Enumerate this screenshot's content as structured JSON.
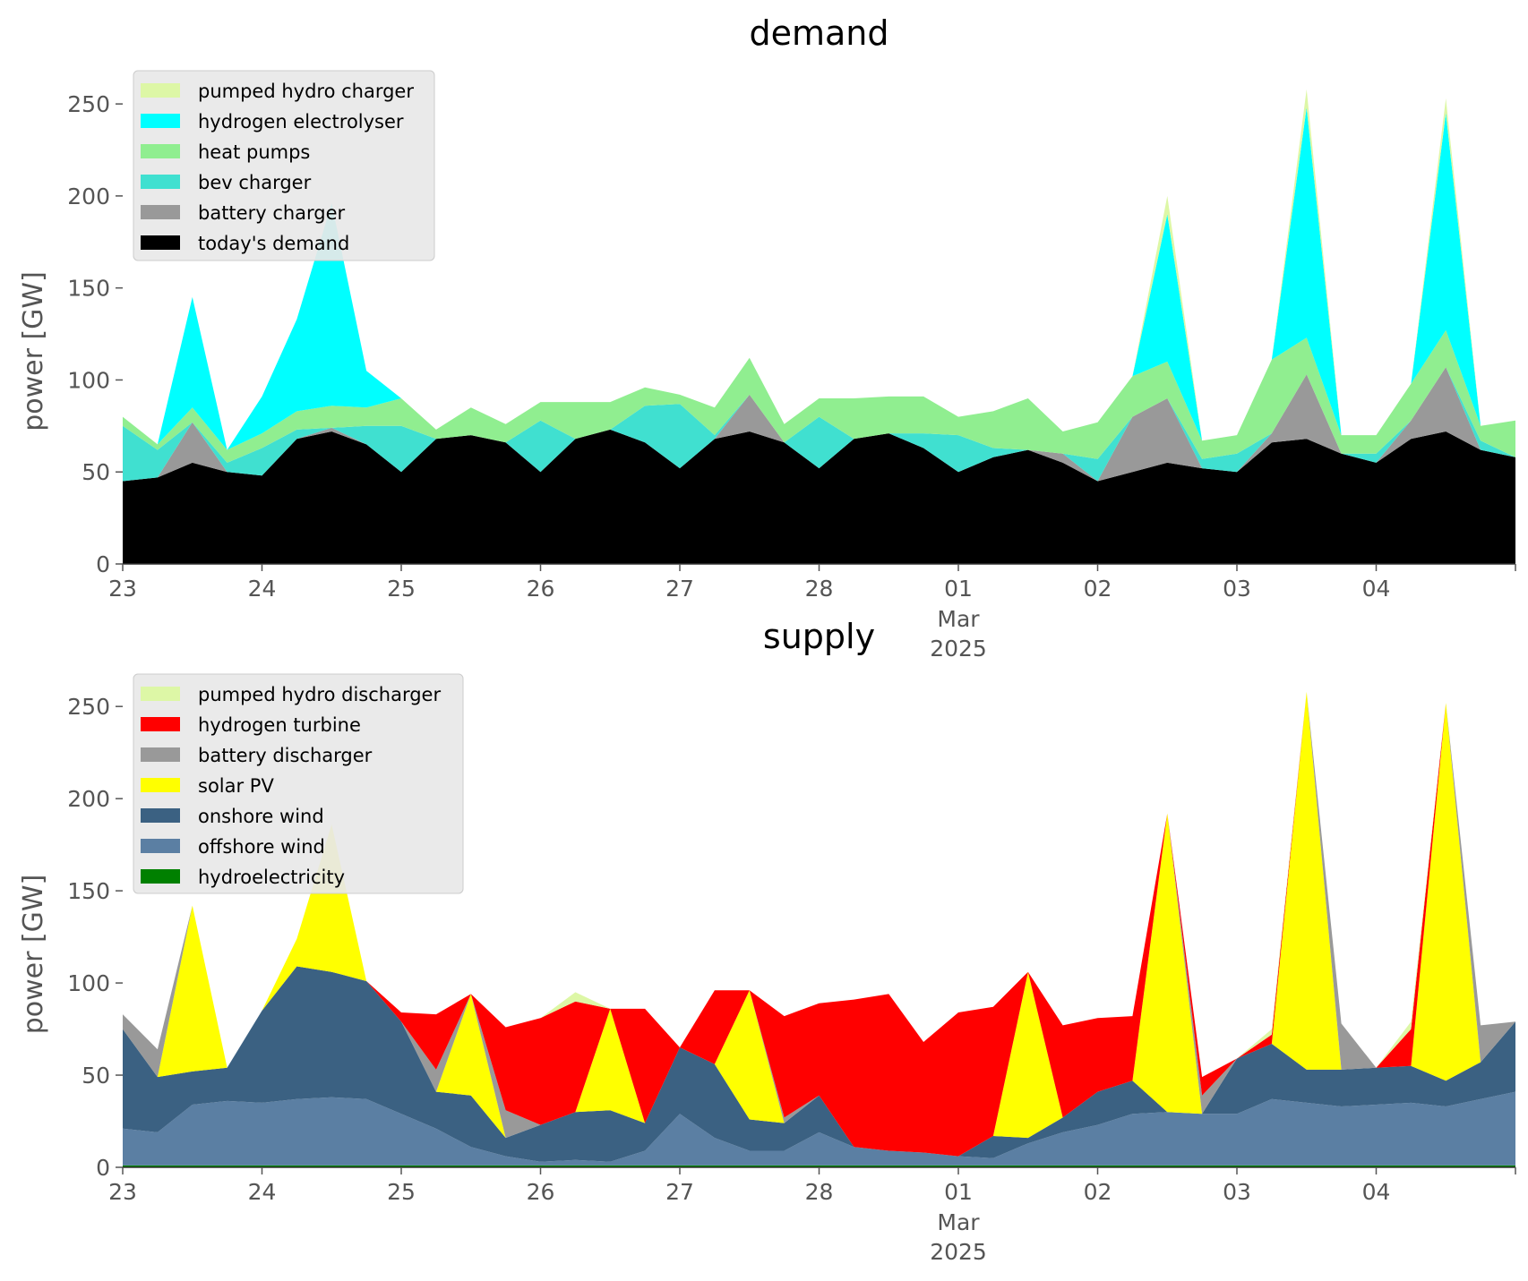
{
  "chart_data": [
    {
      "type": "area",
      "stacked": true,
      "title": "demand",
      "ylabel": "power [GW]",
      "xlabel": "",
      "ylim": [
        0,
        270
      ],
      "xlim": [
        0,
        10
      ],
      "yticks": [
        0,
        50,
        100,
        150,
        200,
        250
      ],
      "xticks": [
        {
          "x": 0,
          "label": "23"
        },
        {
          "x": 1,
          "label": "24"
        },
        {
          "x": 2,
          "label": "25"
        },
        {
          "x": 3,
          "label": "26"
        },
        {
          "x": 4,
          "label": "27"
        },
        {
          "x": 5,
          "label": "28"
        },
        {
          "x": 6,
          "label": "01",
          "sublabel": [
            "Mar",
            "2025"
          ]
        },
        {
          "x": 7,
          "label": "02"
        },
        {
          "x": 8,
          "label": "03"
        },
        {
          "x": 9,
          "label": "04"
        }
      ],
      "x_unit": "days from 23 Feb 2025",
      "legend_position": "upper-left",
      "grid": false,
      "x": [
        0,
        0.25,
        0.5,
        0.75,
        1,
        1.25,
        1.5,
        1.75,
        2,
        2.25,
        2.5,
        2.75,
        3,
        3.25,
        3.5,
        3.75,
        4,
        4.25,
        4.5,
        4.75,
        5,
        5.25,
        5.5,
        5.75,
        6,
        6.25,
        6.5,
        6.75,
        7,
        7.25,
        7.5,
        7.75,
        8,
        8.25,
        8.5,
        8.75,
        9,
        9.25,
        9.5,
        9.75,
        10
      ],
      "series": [
        {
          "name": "today's demand",
          "color": "#000000",
          "values": [
            45,
            47,
            55,
            50,
            48,
            68,
            72,
            65,
            50,
            68,
            70,
            66,
            50,
            68,
            73,
            66,
            52,
            68,
            72,
            66,
            52,
            68,
            71,
            63,
            50,
            58,
            62,
            55,
            45,
            50,
            55,
            52,
            50,
            66,
            68,
            60,
            55,
            68,
            72,
            62,
            58
          ]
        },
        {
          "name": "battery charger",
          "color": "#999999",
          "values": [
            0,
            0,
            22,
            0,
            0,
            0,
            2,
            0,
            0,
            0,
            0,
            0,
            0,
            0,
            0,
            0,
            0,
            0,
            20,
            0,
            0,
            0,
            0,
            0,
            0,
            0,
            0,
            5,
            0,
            30,
            35,
            0,
            0,
            5,
            35,
            0,
            0,
            10,
            35,
            0,
            0
          ]
        },
        {
          "name": "bev charger",
          "color": "#40E0D0",
          "values": [
            30,
            15,
            0,
            5,
            15,
            5,
            0,
            10,
            25,
            0,
            0,
            0,
            28,
            0,
            0,
            20,
            35,
            2,
            0,
            0,
            28,
            0,
            0,
            8,
            20,
            5,
            0,
            0,
            12,
            0,
            0,
            5,
            10,
            0,
            0,
            0,
            5,
            0,
            0,
            5,
            0
          ]
        },
        {
          "name": "heat pumps",
          "color": "#90EE90",
          "values": [
            5,
            3,
            8,
            7,
            8,
            10,
            12,
            10,
            15,
            5,
            15,
            10,
            10,
            20,
            15,
            10,
            5,
            15,
            20,
            10,
            10,
            22,
            20,
            20,
            10,
            20,
            28,
            12,
            20,
            22,
            20,
            10,
            10,
            40,
            20,
            10,
            10,
            20,
            20,
            8,
            20
          ]
        },
        {
          "name": "hydrogen electrolyser",
          "color": "#00FFFF",
          "values": [
            0,
            0,
            60,
            0,
            20,
            50,
            110,
            20,
            0,
            0,
            0,
            0,
            0,
            0,
            0,
            0,
            0,
            0,
            0,
            0,
            0,
            0,
            0,
            0,
            0,
            0,
            0,
            0,
            0,
            0,
            80,
            0,
            0,
            0,
            125,
            0,
            0,
            0,
            118,
            0,
            0
          ]
        },
        {
          "name": "pumped hydro charger",
          "color": "#DDF7A6",
          "values": [
            0,
            0,
            0,
            0,
            0,
            0,
            0,
            0,
            0,
            0,
            0,
            0,
            0,
            0,
            0,
            0,
            0,
            0,
            0,
            0,
            0,
            0,
            0,
            0,
            0,
            0,
            0,
            0,
            0,
            0,
            10,
            0,
            0,
            0,
            10,
            0,
            0,
            0,
            8,
            0,
            0
          ]
        }
      ]
    },
    {
      "type": "area",
      "stacked": true,
      "title": "supply",
      "ylabel": "power [GW]",
      "xlabel": "",
      "ylim": [
        0,
        270
      ],
      "xlim": [
        0,
        10
      ],
      "yticks": [
        0,
        50,
        100,
        150,
        200,
        250
      ],
      "xticks": [
        {
          "x": 0,
          "label": "23"
        },
        {
          "x": 1,
          "label": "24"
        },
        {
          "x": 2,
          "label": "25"
        },
        {
          "x": 3,
          "label": "26"
        },
        {
          "x": 4,
          "label": "27"
        },
        {
          "x": 5,
          "label": "28"
        },
        {
          "x": 6,
          "label": "01",
          "sublabel": [
            "Mar",
            "2025"
          ]
        },
        {
          "x": 7,
          "label": "02"
        },
        {
          "x": 8,
          "label": "03"
        },
        {
          "x": 9,
          "label": "04"
        }
      ],
      "x_unit": "days from 23 Feb 2025",
      "legend_position": "upper-left",
      "grid": false,
      "x": [
        0,
        0.25,
        0.5,
        0.75,
        1,
        1.25,
        1.5,
        1.75,
        2,
        2.25,
        2.5,
        2.75,
        3,
        3.25,
        3.5,
        3.75,
        4,
        4.25,
        4.5,
        4.75,
        5,
        5.25,
        5.5,
        5.75,
        6,
        6.25,
        6.5,
        6.75,
        7,
        7.25,
        7.5,
        7.75,
        8,
        8.25,
        8.5,
        8.75,
        9,
        9.25,
        9.5,
        9.75,
        10
      ],
      "series": [
        {
          "name": "hydroelectricity",
          "color": "#008000",
          "values": [
            1,
            1,
            1,
            1,
            1,
            1,
            1,
            1,
            1,
            1,
            1,
            1,
            1,
            1,
            1,
            1,
            1,
            1,
            1,
            1,
            1,
            1,
            1,
            1,
            1,
            1,
            1,
            1,
            1,
            1,
            1,
            1,
            1,
            1,
            1,
            1,
            1,
            1,
            1,
            1,
            1
          ]
        },
        {
          "name": "offshore wind",
          "color": "#5B7FA3",
          "values": [
            20,
            18,
            33,
            35,
            34,
            36,
            37,
            36,
            28,
            20,
            10,
            5,
            2,
            3,
            2,
            8,
            28,
            15,
            8,
            8,
            18,
            10,
            8,
            7,
            5,
            4,
            12,
            18,
            22,
            28,
            29,
            28,
            28,
            36,
            34,
            32,
            33,
            34,
            32,
            36,
            40
          ]
        },
        {
          "name": "onshore wind",
          "color": "#3B6182",
          "values": [
            54,
            30,
            18,
            18,
            50,
            72,
            68,
            64,
            50,
            20,
            28,
            10,
            20,
            26,
            28,
            15,
            36,
            40,
            17,
            15,
            20,
            0,
            0,
            0,
            0,
            12,
            3,
            8,
            18,
            18,
            0,
            0,
            30,
            30,
            18,
            20,
            20,
            20,
            14,
            20,
            38
          ]
        },
        {
          "name": "solar PV",
          "color": "#FFFF00",
          "values": [
            0,
            0,
            90,
            0,
            0,
            15,
            80,
            0,
            0,
            0,
            55,
            0,
            0,
            0,
            55,
            0,
            0,
            0,
            70,
            0,
            0,
            0,
            0,
            0,
            0,
            0,
            90,
            0,
            0,
            0,
            162,
            0,
            0,
            0,
            205,
            0,
            0,
            0,
            205,
            0,
            0
          ]
        },
        {
          "name": "battery discharger",
          "color": "#999999",
          "values": [
            8,
            15,
            0,
            0,
            0,
            0,
            0,
            0,
            0,
            12,
            0,
            15,
            0,
            0,
            0,
            0,
            0,
            0,
            0,
            3,
            0,
            0,
            0,
            0,
            0,
            0,
            0,
            0,
            0,
            0,
            0,
            10,
            0,
            0,
            0,
            25,
            0,
            0,
            0,
            20,
            0
          ]
        },
        {
          "name": "hydrogen turbine",
          "color": "#FF0000",
          "values": [
            0,
            0,
            0,
            0,
            0,
            0,
            0,
            0,
            5,
            30,
            0,
            45,
            58,
            60,
            0,
            62,
            0,
            40,
            0,
            55,
            50,
            80,
            85,
            60,
            78,
            70,
            0,
            50,
            40,
            35,
            0,
            10,
            0,
            5,
            0,
            0,
            0,
            20,
            0,
            0,
            0
          ]
        },
        {
          "name": "pumped hydro discharger",
          "color": "#DDF7A6",
          "values": [
            0,
            0,
            0,
            0,
            0,
            0,
            0,
            0,
            0,
            0,
            0,
            0,
            0,
            5,
            0,
            0,
            0,
            0,
            0,
            0,
            0,
            0,
            0,
            0,
            0,
            0,
            0,
            0,
            0,
            0,
            0,
            0,
            0,
            3,
            0,
            0,
            0,
            4,
            0,
            0,
            0
          ]
        }
      ]
    }
  ]
}
